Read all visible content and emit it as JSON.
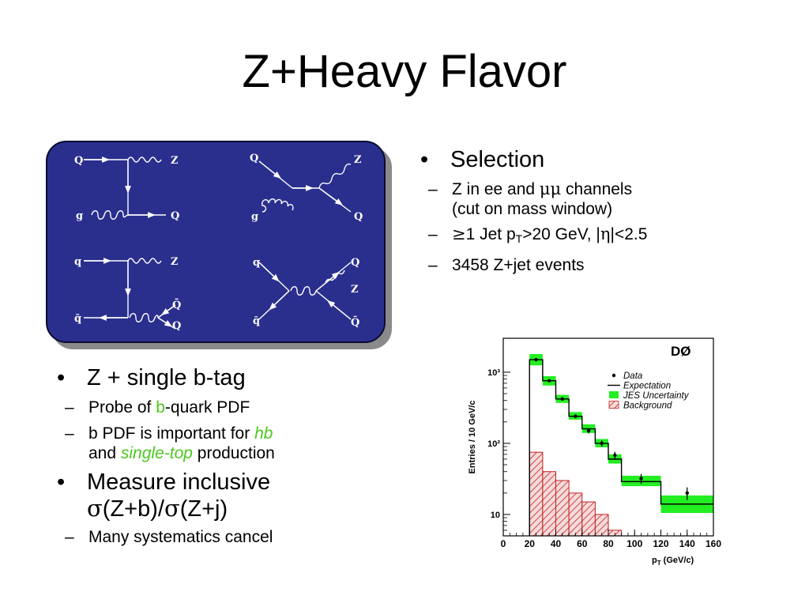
{
  "title": "Z+Heavy Flavor",
  "feynman": {
    "d1": {
      "q": "Q",
      "z": "Z",
      "g": "g",
      "q2": "Q"
    },
    "d2": {
      "q": "Q",
      "z": "Z",
      "g": "g",
      "q2": "Q"
    },
    "d3": {
      "q": "q",
      "z": "Z",
      "qbar": "q̄",
      "qq1": "Q̄",
      "qq2": "Q"
    },
    "d4": {
      "q": "q",
      "z": "Z",
      "qbar": "q̄",
      "qq1": "Q",
      "qq2": "Q̄"
    }
  },
  "selection": {
    "heading": "Selection",
    "item1_a": "Z in ee and ",
    "item1_sym": "μμ",
    "item1_b": " channels",
    "item1_c": "(cut on mass window)",
    "item2_sym1": "≥",
    "item2_a": "1 Jet p",
    "item2_sub": "T",
    "item2_b": ">20 GeV, |",
    "item2_sym2": "η",
    "item2_c": "|<2.5",
    "item3": "3458 Z+jet events"
  },
  "zb": {
    "heading": "Z + single b-tag",
    "item1_a": "Probe of ",
    "item1_b": "b",
    "item1_c": "-quark PDF",
    "item2_a": "b PDF is important for ",
    "item2_b": "hb",
    "item2_c": "and ",
    "item2_d": "single-top",
    "item2_e": " production"
  },
  "measure": {
    "heading_a": "Measure inclusive",
    "sym1": "σ",
    "heading_b": "(Z+b)/",
    "sym2": "σ",
    "heading_c": "(Z+j)",
    "item1": "Many systematics cancel"
  },
  "chart_data": {
    "type": "bar",
    "label": "DØ",
    "xlabel": "p_T (GeV/c)",
    "xlabel_main": "p",
    "xlabel_sub": "T",
    "xlabel_unit": " (GeV/c)",
    "ylabel": "Entries / 10 GeV/c",
    "yscale": "log",
    "xlim": [
      0,
      160
    ],
    "ylim": [
      5,
      3000
    ],
    "xticks": [
      0,
      20,
      40,
      60,
      80,
      100,
      120,
      140,
      160
    ],
    "yticks": [
      {
        "v": 10,
        "label": "10"
      },
      {
        "v": 100,
        "label": "10²"
      },
      {
        "v": 1000,
        "label": "10³"
      }
    ],
    "legend_position": "top-right",
    "bin_edges": [
      20,
      30,
      40,
      50,
      60,
      70,
      80,
      90,
      120,
      160
    ],
    "series": [
      {
        "name": "Data",
        "values": [
          1500,
          760,
          420,
          240,
          150,
          100,
          68,
          32,
          20
        ],
        "errors": [
          40,
          28,
          20,
          15,
          12,
          10,
          8,
          5,
          4
        ]
      },
      {
        "name": "Expectation",
        "values": [
          1500,
          760,
          420,
          240,
          160,
          100,
          60,
          29,
          14
        ]
      },
      {
        "name": "JES Uncertainty",
        "low": [
          1250,
          650,
          370,
          215,
          140,
          88,
          52,
          25,
          10.5
        ],
        "high": [
          1800,
          880,
          480,
          275,
          185,
          115,
          70,
          35,
          18.5
        ]
      },
      {
        "name": "Background",
        "values": [
          75,
          40,
          30,
          20,
          15,
          10,
          6
        ]
      }
    ],
    "colors": {
      "jes": "#22ee22",
      "background": "#c02020",
      "line": "#000000"
    }
  }
}
